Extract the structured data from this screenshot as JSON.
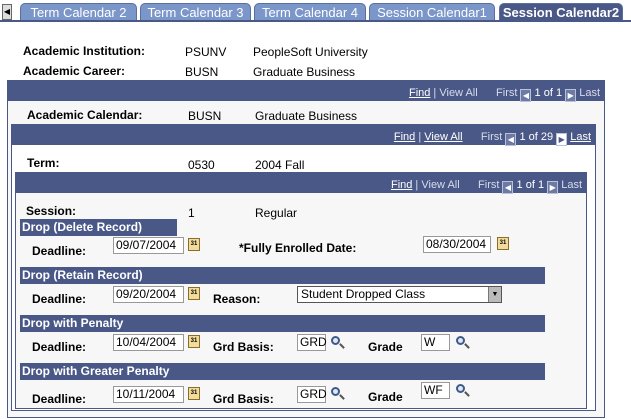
{
  "tabs": [
    {
      "label": "Term Calendar 2"
    },
    {
      "label": "Term Calendar 3"
    },
    {
      "label": "Term Calendar 4"
    },
    {
      "label": "Session Calendar1"
    },
    {
      "label": "Session Calendar2",
      "active": true
    }
  ],
  "header": {
    "institution_label": "Academic Institution:",
    "institution_code": "PSUNV",
    "institution_name": "PeopleSoft University",
    "career_label": "Academic Career:",
    "career_code": "BUSN",
    "career_name": "Graduate Business"
  },
  "nav1": {
    "find": "Find",
    "view_all": "View All",
    "first": "First",
    "count": "1 of 1",
    "last": "Last"
  },
  "calendar": {
    "label": "Academic Calendar:",
    "code": "BUSN",
    "name": "Graduate Business"
  },
  "nav2": {
    "find": "Find",
    "view_all": "View All",
    "first": "First",
    "count": "1 of 29",
    "last": "Last"
  },
  "term": {
    "label": "Term:",
    "code": "0530",
    "name": "2004 Fall"
  },
  "nav3": {
    "find": "Find",
    "view_all": "View All",
    "first": "First",
    "count": "1 of 1",
    "last": "Last"
  },
  "session": {
    "label": "Session:",
    "code": "1",
    "name": "Regular"
  },
  "drop_delete": {
    "title": "Drop (Delete Record)",
    "deadline_label": "Deadline:",
    "deadline": "09/07/2004",
    "enrolled_label": "*Fully Enrolled Date:",
    "enrolled": "08/30/2004"
  },
  "drop_retain": {
    "title": "Drop (Retain Record)",
    "deadline_label": "Deadline:",
    "deadline": "09/20/2004",
    "reason_label": "Reason:",
    "reason": "Student Dropped Class"
  },
  "drop_penalty": {
    "title": "Drop with Penalty",
    "deadline_label": "Deadline:",
    "deadline": "10/04/2004",
    "basis_label": "Grd Basis:",
    "basis": "GRD",
    "grade_label": "Grade",
    "grade": "W"
  },
  "drop_greater": {
    "title": "Drop with Greater Penalty",
    "deadline_label": "Deadline:",
    "deadline": "10/11/2004",
    "basis_label": "Grd Basis:",
    "basis": "GRD",
    "grade_label": "Grade",
    "grade": "WF"
  },
  "icons": {
    "calendar": "31"
  }
}
